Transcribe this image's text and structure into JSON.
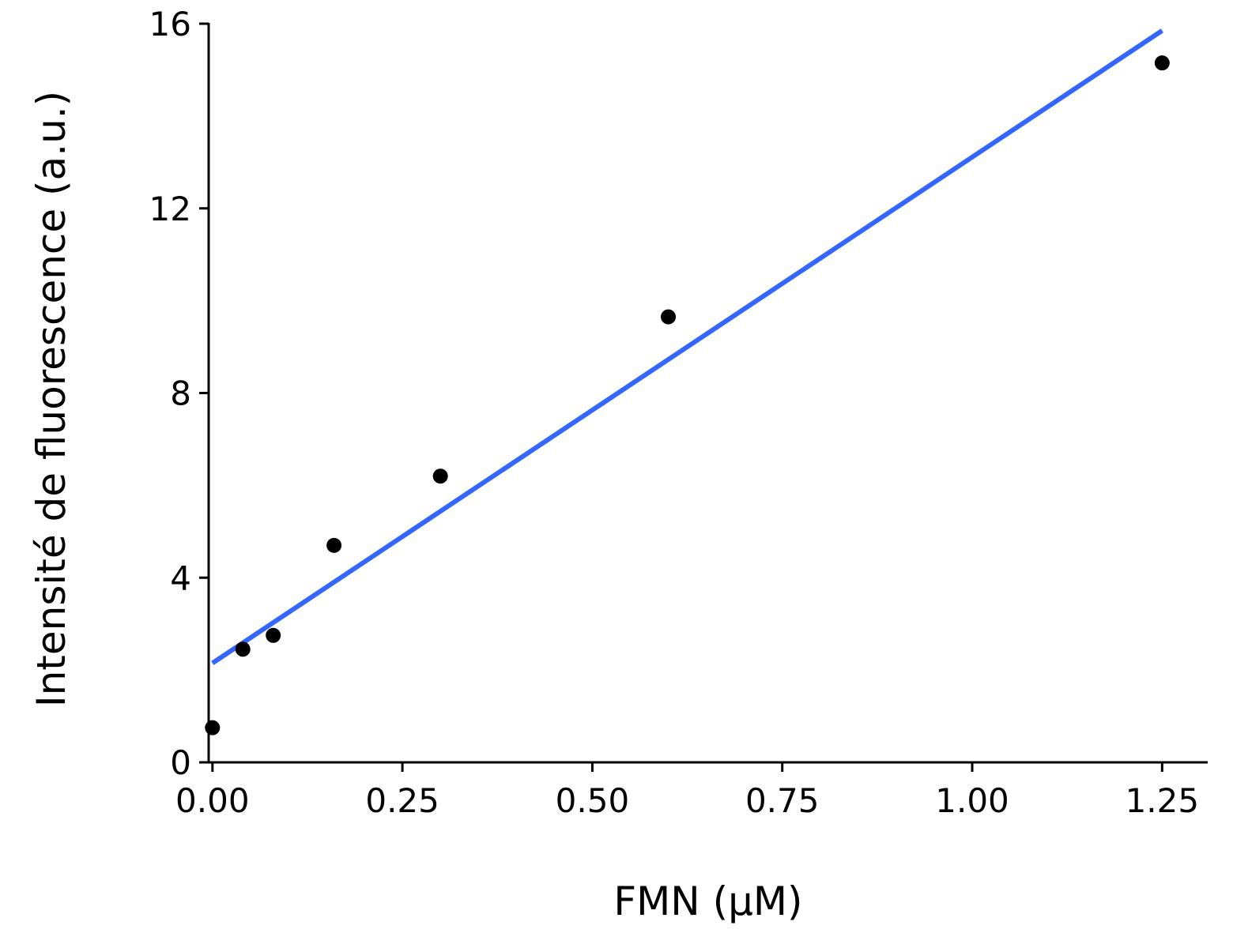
{
  "chart_data": {
    "type": "scatter",
    "title": "",
    "xlabel": "FMN (µM)",
    "ylabel": "Intensité de fluorescence (a.u.)",
    "xlim": [
      -0.005,
      1.31
    ],
    "ylim": [
      0,
      16
    ],
    "xticks": [
      0,
      0.25,
      0.5,
      0.75,
      1.0,
      1.25
    ],
    "xtick_labels": [
      "0.00",
      "0.25",
      "0.50",
      "0.75",
      "1.00",
      "1.25"
    ],
    "yticks": [
      0,
      4,
      8,
      12,
      16
    ],
    "ytick_labels": [
      "0",
      "4",
      "8",
      "12",
      "16"
    ],
    "grid": false,
    "series": [
      {
        "kind": "points",
        "x": [
          0,
          0.04,
          0.08,
          0.16,
          0.3,
          0.6,
          1.25
        ],
        "y": [
          0.75,
          2.45,
          2.75,
          4.7,
          6.2,
          9.65,
          15.15
        ]
      },
      {
        "kind": "fit-line",
        "x": [
          0,
          1.25
        ],
        "y": [
          2.15,
          15.85
        ]
      }
    ],
    "colors": {
      "points": "#000000",
      "fit_line": "#3366ff",
      "axes": "#000000"
    }
  }
}
